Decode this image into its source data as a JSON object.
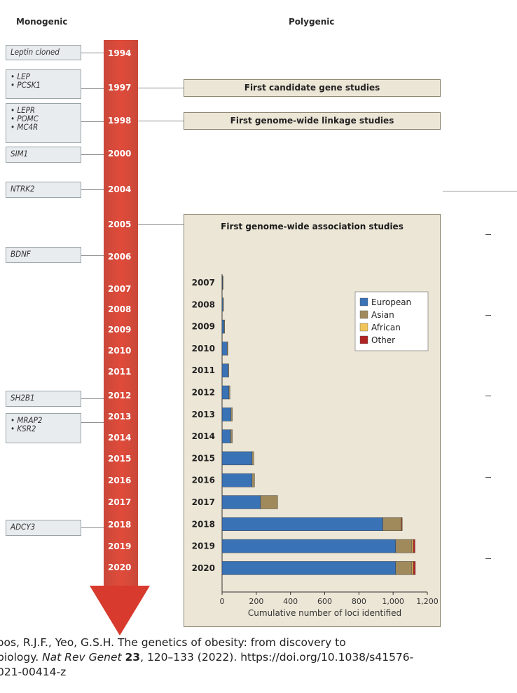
{
  "headers": {
    "monogenic": "Monogenic",
    "polygenic": "Polygenic"
  },
  "colors": {
    "arrow_top": "#c9483a",
    "arrow_bottom": "#d83a2d",
    "european": "#3a72b6",
    "asian": "#a08a5c",
    "african": "#f1c45a",
    "other": "#b02323",
    "panel": "#ece6d6"
  },
  "years": [
    "1994",
    "1997",
    "1998",
    "2000",
    "2004",
    "2005",
    "2006",
    "2007",
    "2008",
    "2009",
    "2010",
    "2011",
    "2012",
    "2013",
    "2014",
    "2015",
    "2016",
    "2017",
    "2018",
    "2019",
    "2020"
  ],
  "gene_boxes": [
    {
      "lines": [
        "Leptin cloned"
      ]
    },
    {
      "lines": [
        "• LEP",
        "• PCSK1"
      ]
    },
    {
      "lines": [
        "• LEPR",
        "• POMC",
        "• MC4R"
      ]
    },
    {
      "lines": [
        "SIM1"
      ]
    },
    {
      "lines": [
        "NTRK2"
      ]
    },
    {
      "lines": [
        "BDNF"
      ]
    },
    {
      "lines": [
        "SH2B1"
      ]
    },
    {
      "lines": [
        "• MRAP2",
        "• KSR2"
      ]
    },
    {
      "lines": [
        "ADCY3"
      ]
    }
  ],
  "studies": {
    "candidate": "First candidate gene studies",
    "linkage": "First genome-wide linkage studies",
    "gwas": "First genome-wide association studies"
  },
  "chart_data": {
    "type": "bar",
    "orientation": "horizontal",
    "stacked": true,
    "title": "First genome-wide association studies",
    "xlabel": "Cumulative number of loci identified",
    "ylabel": "",
    "xlim": [
      0,
      1200
    ],
    "xticks": [
      "0",
      "200",
      "400",
      "600",
      "800",
      "1,000",
      "1,200"
    ],
    "categories": [
      "2007",
      "2008",
      "2009",
      "2010",
      "2011",
      "2012",
      "2013",
      "2014",
      "2015",
      "2016",
      "2017",
      "2018",
      "2019",
      "2020"
    ],
    "series": [
      {
        "name": "European",
        "color": "#3a72b6",
        "values": [
          3,
          5,
          12,
          30,
          36,
          40,
          52,
          50,
          175,
          175,
          225,
          940,
          1015,
          1015
        ]
      },
      {
        "name": "Asian",
        "color": "#a08a5c",
        "values": [
          1,
          1,
          2,
          3,
          3,
          6,
          8,
          10,
          10,
          15,
          100,
          105,
          95,
          95
        ]
      },
      {
        "name": "African",
        "color": "#f1c45a",
        "values": [
          0,
          0,
          0,
          0,
          0,
          0,
          0,
          0,
          0,
          0,
          0,
          5,
          8,
          8
        ]
      },
      {
        "name": "Other",
        "color": "#b02323",
        "values": [
          0,
          0,
          0,
          0,
          0,
          0,
          0,
          0,
          0,
          0,
          0,
          2,
          10,
          12
        ]
      }
    ],
    "legend": [
      "European",
      "Asian",
      "African",
      "Other"
    ]
  },
  "citation": {
    "line1": "oos, R.J.F., Yeo, G.S.H. The genetics of obesity: from discovery to",
    "line2a": "biology. ",
    "journal": "Nat Rev Genet",
    "space": " ",
    "volume": "23",
    "line2b": ", 120–133 (2022). https://doi.org/10.1038/s41576-",
    "line3": "021-00414-z"
  }
}
